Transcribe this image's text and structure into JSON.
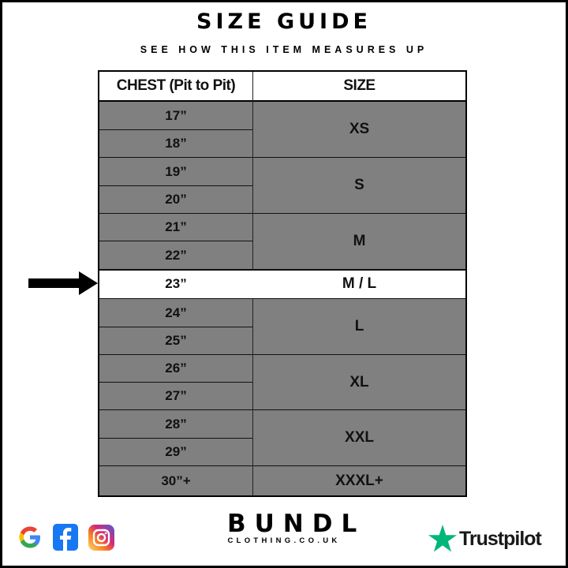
{
  "title": "SIZE GUIDE",
  "subtitle": "SEE HOW THIS ITEM MEASURES UP",
  "table": {
    "headers": [
      "CHEST (Pit to Pit)",
      "SIZE"
    ],
    "chest": [
      "17”",
      "18”",
      "19”",
      "20”",
      "21”",
      "22”",
      "23”",
      "24”",
      "25”",
      "26”",
      "27”",
      "28”",
      "29”",
      "30”+"
    ],
    "sizes": [
      {
        "label": "XS",
        "rows": 2
      },
      {
        "label": "S",
        "rows": 2
      },
      {
        "label": "M",
        "rows": 2
      },
      {
        "label": "M / L",
        "rows": 1,
        "highlighted": true
      },
      {
        "label": "L",
        "rows": 2
      },
      {
        "label": "XL",
        "rows": 2
      },
      {
        "label": "XXL",
        "rows": 2
      },
      {
        "label": "XXXL+",
        "rows": 1
      }
    ],
    "highlight_row": "23”"
  },
  "colors": {
    "cell": "#808080",
    "highlight": "#ffffff",
    "trustpilot": "#00b67a"
  },
  "footer": {
    "social_icons": [
      "google-icon",
      "facebook-icon",
      "instagram-icon"
    ],
    "brand": "BUNDL",
    "brand_sub": "CLOTHING.CO.UK",
    "trustpilot": "Trustpilot"
  }
}
